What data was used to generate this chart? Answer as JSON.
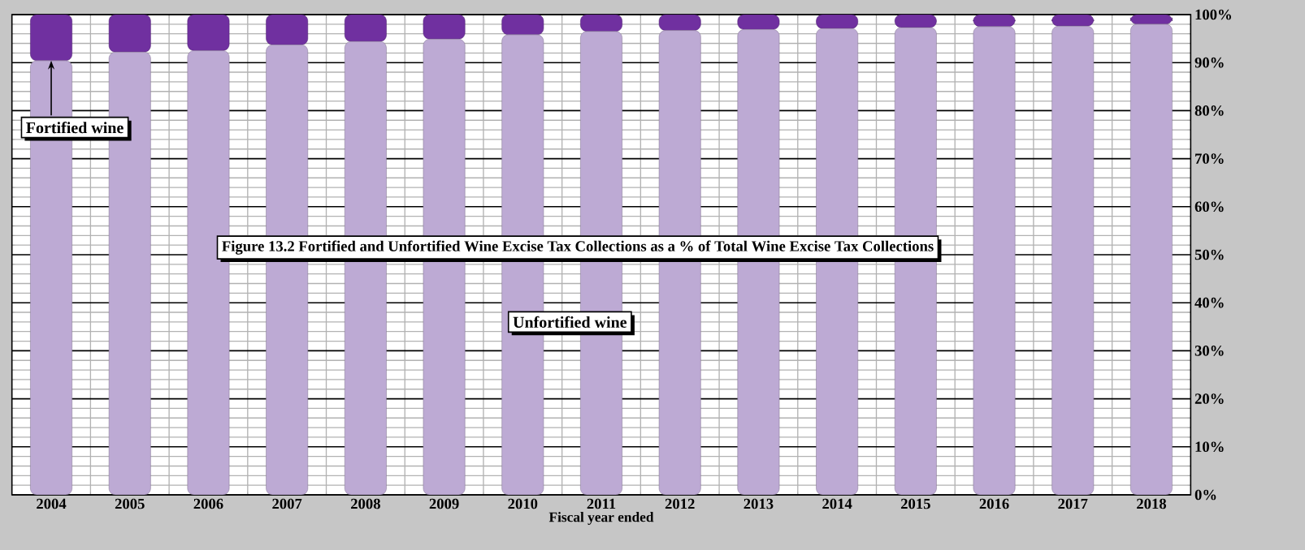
{
  "chart_data": {
    "type": "bar",
    "stacked": true,
    "title": "Figure 13.2  Fortified and Unfortified Wine Excise Tax Collections as a % of Total Wine Excise Tax Collections",
    "xlabel": "Fiscal year ended",
    "categories": [
      "2004",
      "2005",
      "2006",
      "2007",
      "2008",
      "2009",
      "2010",
      "2011",
      "2012",
      "2013",
      "2014",
      "2015",
      "2016",
      "2017",
      "2018"
    ],
    "series": [
      {
        "name": "Unfortified wine",
        "color": "#bdaad4",
        "values": [
          90.4,
          92.2,
          92.5,
          93.7,
          94.4,
          94.9,
          95.8,
          96.5,
          96.7,
          96.9,
          97.1,
          97.3,
          97.5,
          97.6,
          98.0
        ]
      },
      {
        "name": "Fortified wine",
        "color": "#7030a0",
        "values": [
          9.6,
          7.8,
          7.5,
          6.3,
          5.6,
          5.1,
          4.2,
          3.5,
          3.3,
          3.1,
          2.9,
          2.7,
          2.5,
          2.4,
          2.0
        ]
      }
    ],
    "ylim": [
      0,
      100
    ],
    "yticks": [
      {
        "value": 0,
        "label": "0%"
      },
      {
        "value": 10,
        "label": "10%"
      },
      {
        "value": 20,
        "label": "20%"
      },
      {
        "value": 30,
        "label": "30%"
      },
      {
        "value": 40,
        "label": "40%"
      },
      {
        "value": 50,
        "label": "50%"
      },
      {
        "value": 60,
        "label": "60%"
      },
      {
        "value": 70,
        "label": "70%"
      },
      {
        "value": 80,
        "label": "80%"
      },
      {
        "value": 90,
        "label": "90%"
      },
      {
        "value": 100,
        "label": "100%"
      }
    ],
    "grid": true,
    "legend": false
  }
}
